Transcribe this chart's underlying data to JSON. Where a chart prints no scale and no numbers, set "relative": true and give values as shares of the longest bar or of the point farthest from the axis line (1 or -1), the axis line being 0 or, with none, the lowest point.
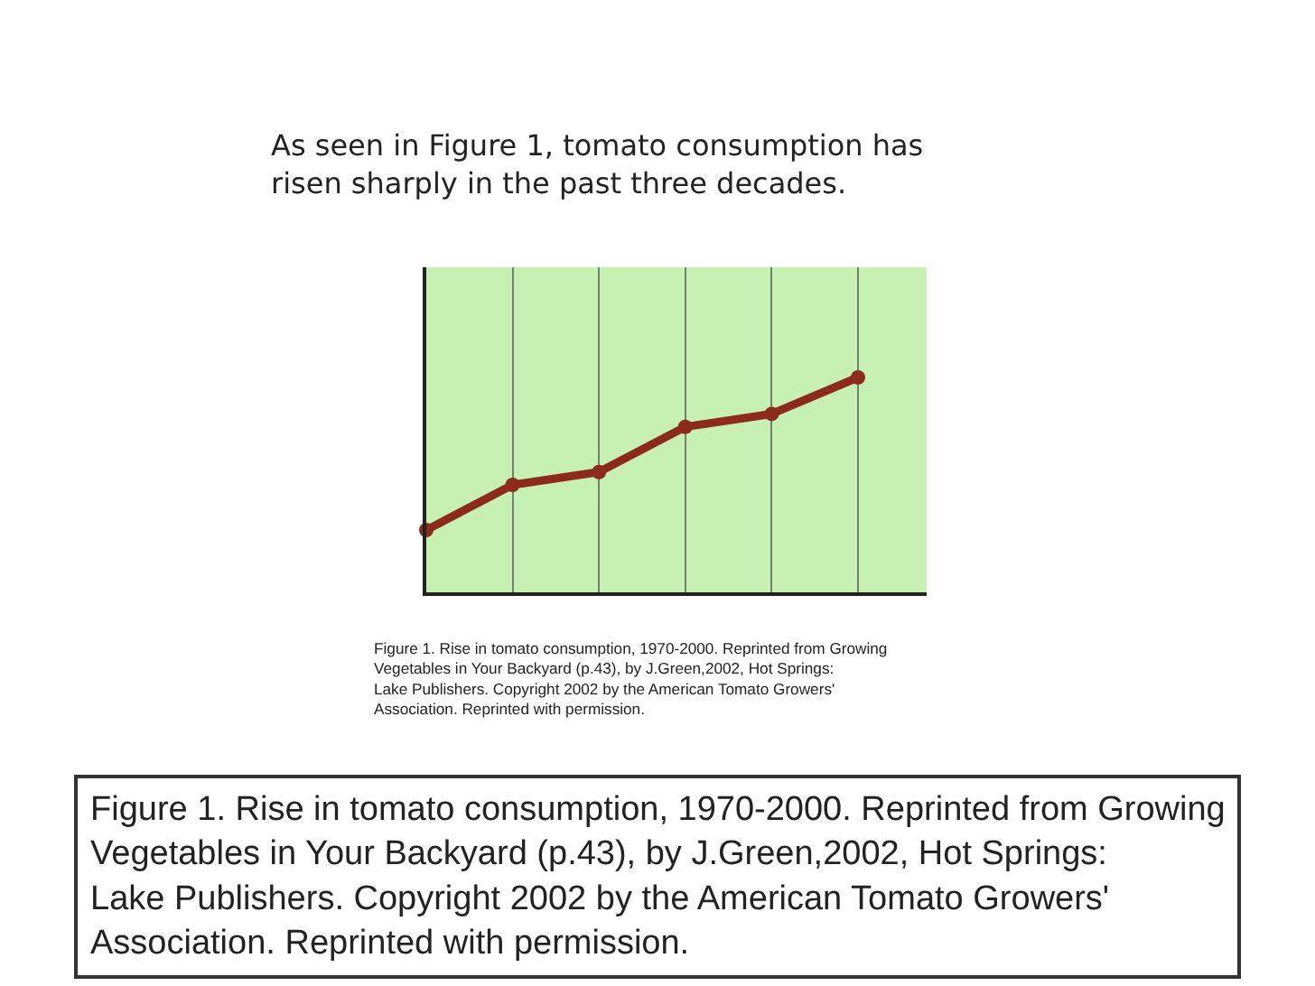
{
  "chart_data": {
    "type": "line",
    "title": "As seen in Figure 1, tomato consumption has\nrisen sharply in the past three decades.",
    "annotations": [
      "Figure 1. Rise in tomato consumption, 1970-2000. Reprinted from Growing\nVegetables in Your Backyard (p.43), by J.Green,2002, Hot Springs:\nLake Publishers. Copyright 2002 by the American Tomato Growers'\nAssociation. Reprinted with permission.",
      "Figure 1. Rise in tomato consumption, 1970-2000. Reprinted from Growing\nVegetables in Your Backyard (p.43), by J.Green,2002, Hot Springs:\nLake Publishers. Copyright 2002 by the American Tomato Growers'\nAssociation. Reprinted with permission."
    ],
    "categories": [
      null,
      null,
      null,
      null,
      null,
      null
    ],
    "series": [
      {
        "color": "#8c2a1c",
        "values": [
          0.29,
          0.5,
          0.56,
          0.77,
          0.83,
          1
        ]
      }
    ],
    "relative": true,
    "grid": "x",
    "marker": "circle"
  }
}
